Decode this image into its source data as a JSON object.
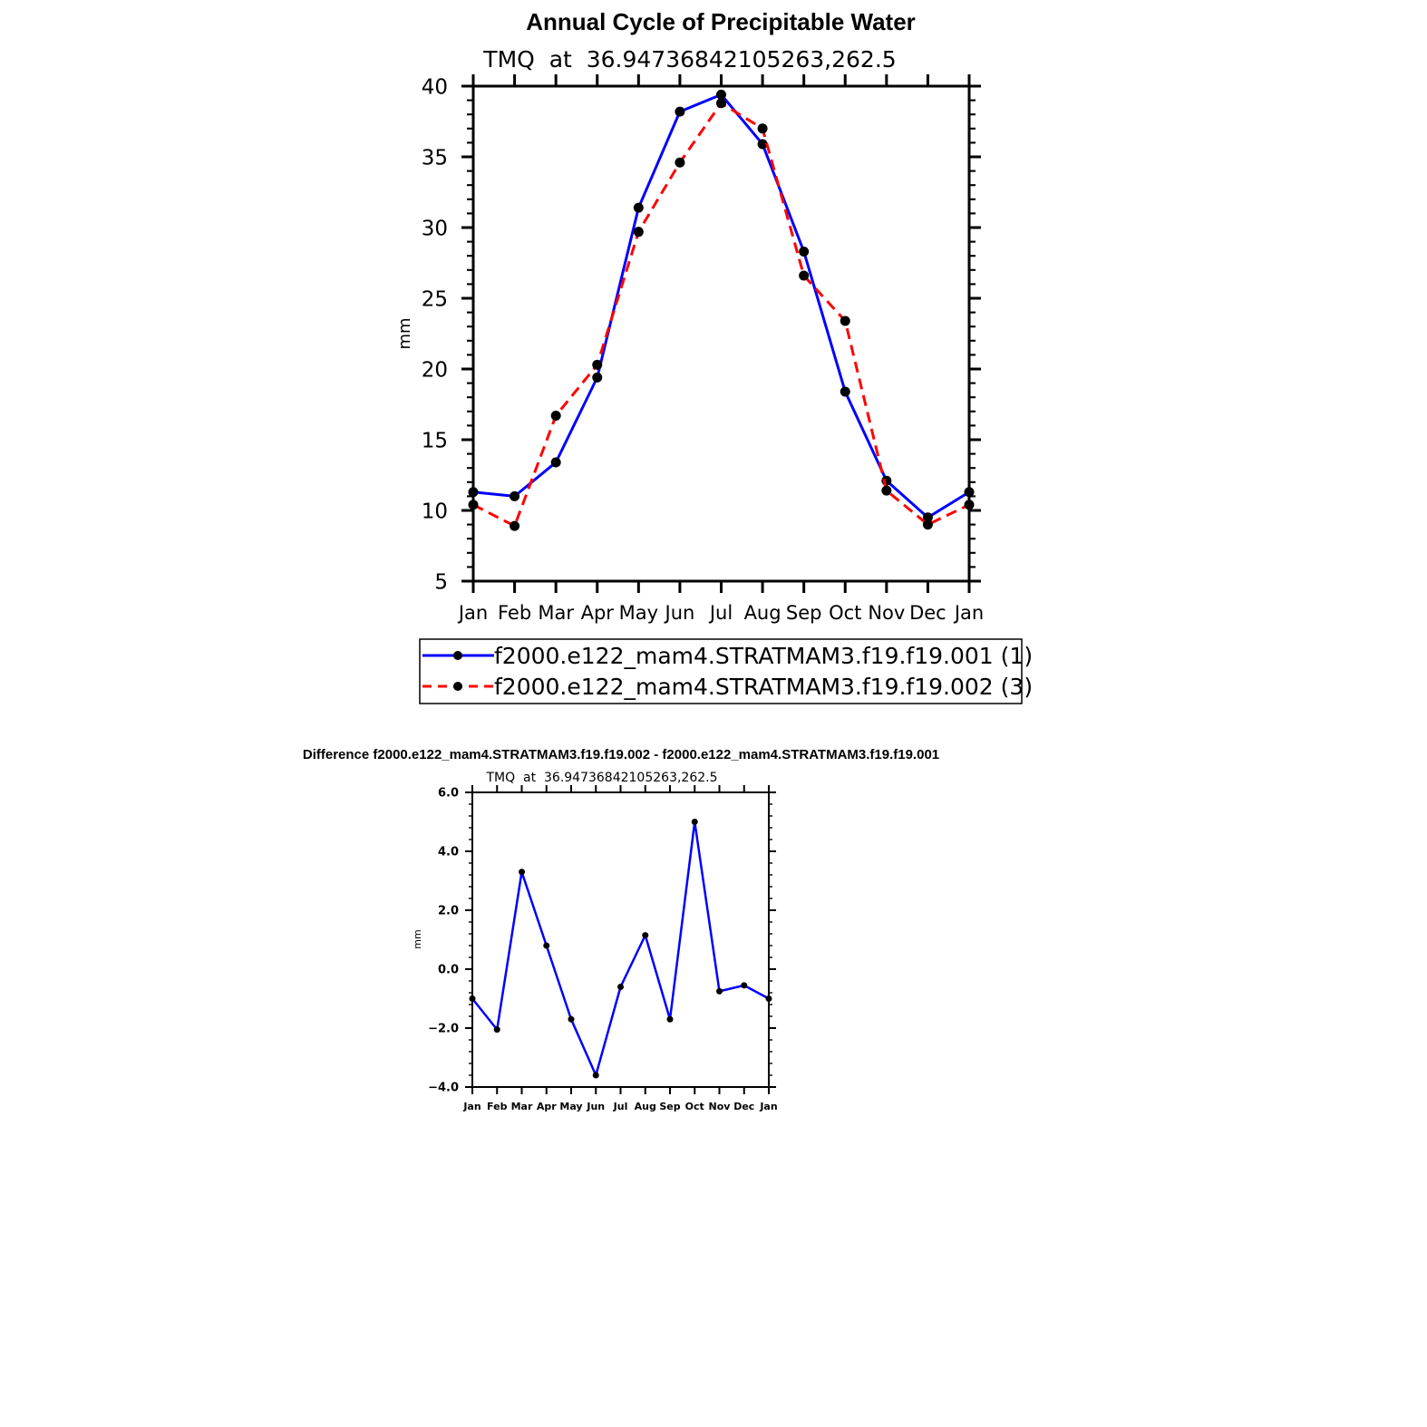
{
  "chart_data": [
    {
      "type": "line",
      "title": "Annual Cycle of Precipitable Water",
      "subtitle": "TMQ  at  36.94736842105263,262.5",
      "xlabel": "",
      "ylabel": "mm",
      "categories": [
        "Jan",
        "Feb",
        "Mar",
        "Apr",
        "May",
        "Jun",
        "Jul",
        "Aug",
        "Sep",
        "Oct",
        "Nov",
        "Dec",
        "Jan"
      ],
      "ylim": [
        5,
        40
      ],
      "yticks": [
        5,
        10,
        15,
        20,
        25,
        30,
        35,
        40
      ],
      "ytick_labels": [
        "5",
        "10",
        "15",
        "20",
        "25",
        "30",
        "35",
        "40"
      ],
      "series": [
        {
          "name": "f2000.e122_mam4.STRATMAM3.f19.f19.001 (1)",
          "color": "#0000ff",
          "dash": "solid",
          "values": [
            11.3,
            11.0,
            13.4,
            19.4,
            31.4,
            38.2,
            39.4,
            35.9,
            28.3,
            18.4,
            12.1,
            9.5,
            11.3
          ]
        },
        {
          "name": "f2000.e122_mam4.STRATMAM3.f19.f19.002 (3)",
          "color": "#ff0000",
          "dash": "dashed",
          "values": [
            10.4,
            8.9,
            16.7,
            20.3,
            29.7,
            34.6,
            38.8,
            37.0,
            26.6,
            23.4,
            11.4,
            9.0,
            10.4
          ]
        }
      ],
      "legend_position": "bottom"
    },
    {
      "type": "line",
      "title": "Difference f2000.e122_mam4.STRATMAM3.f19.f19.002 - f2000.e122_mam4.STRATMAM3.f19.f19.001",
      "subtitle": "TMQ  at  36.94736842105263,262.5",
      "xlabel": "",
      "ylabel": "mm",
      "categories": [
        "Jan",
        "Feb",
        "Mar",
        "Apr",
        "May",
        "Jun",
        "Jul",
        "Aug",
        "Sep",
        "Oct",
        "Nov",
        "Dec",
        "Jan"
      ],
      "ylim": [
        -4,
        6
      ],
      "yticks": [
        -4,
        -2,
        0,
        2,
        4,
        6
      ],
      "ytick_labels": [
        "−4.0",
        "−2.0",
        "0.0",
        "2.0",
        "4.0",
        "6.0"
      ],
      "series": [
        {
          "name": "difference",
          "color": "#0000ff",
          "dash": "solid",
          "values": [
            -1.0,
            -2.05,
            3.3,
            0.8,
            -1.7,
            -3.6,
            -0.6,
            1.15,
            -1.7,
            5.0,
            -0.75,
            -0.55,
            -1.0
          ]
        }
      ]
    }
  ]
}
